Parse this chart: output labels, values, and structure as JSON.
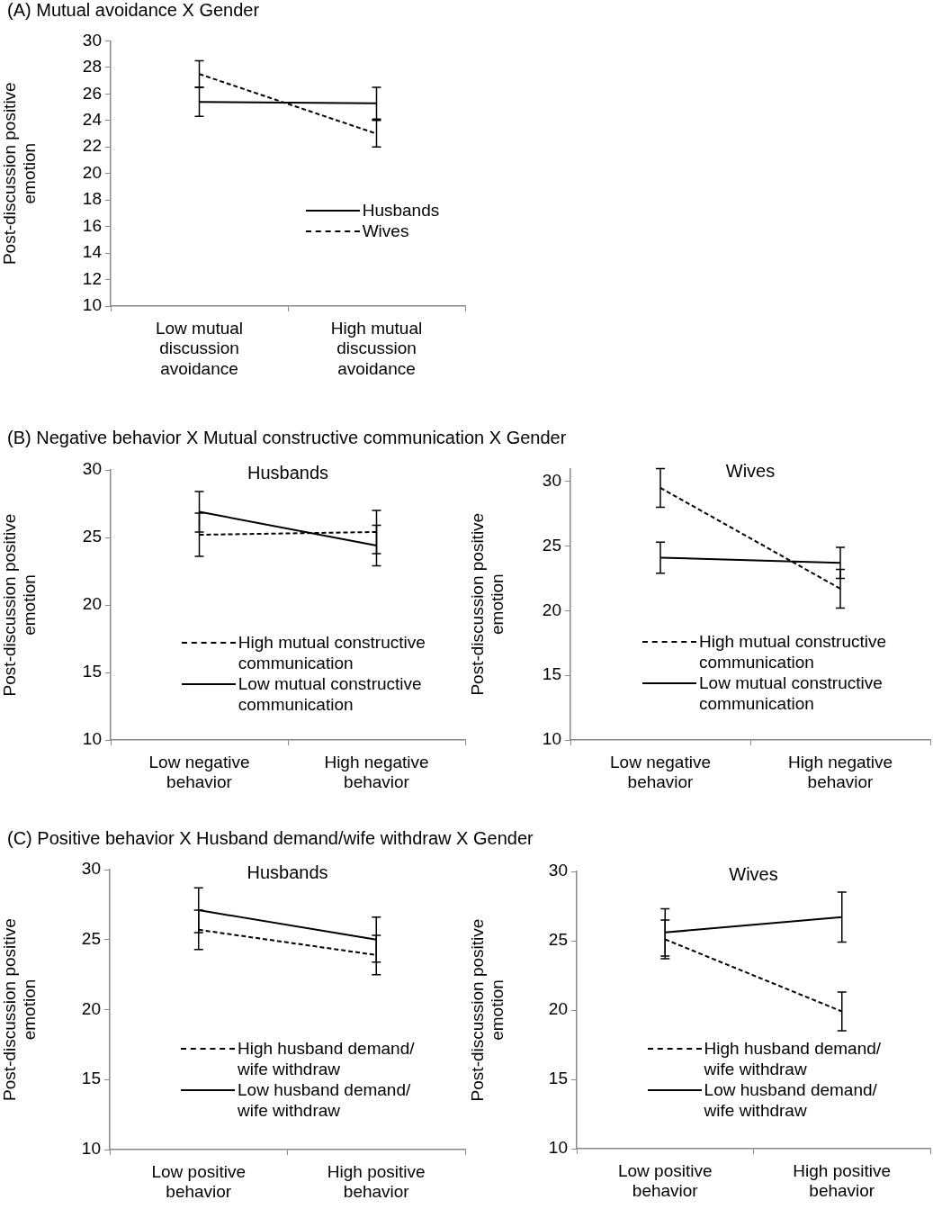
{
  "chart_data": [
    {
      "type": "line",
      "title": "(A) Mutual avoidance X Gender",
      "ylabel": "Post-discussion positive emotion",
      "categories": [
        "Low mutual discussion avoidance",
        "High mutual discussion avoidance"
      ],
      "ylim": [
        10,
        30
      ],
      "yticks": [
        10,
        12,
        14,
        16,
        18,
        20,
        22,
        24,
        26,
        28,
        30
      ],
      "legend": "right",
      "marker": "none",
      "series": [
        {
          "name": "Husbands",
          "color": "#000000",
          "line_style": "solid",
          "values": [
            25.4,
            25.3
          ],
          "errors": [
            1.1,
            1.2
          ]
        },
        {
          "name": "Wives",
          "color": "#000000",
          "line_style": "dashed",
          "values": [
            27.5,
            23.0
          ],
          "errors": [
            1.0,
            1.0
          ]
        }
      ]
    },
    {
      "type": "line",
      "title": "(B) Negative behavior X Mutual constructive communication X Gender",
      "subtitle": "Husbands",
      "ylabel": "Post-discussion positive emotion",
      "categories": [
        "Low negative behavior",
        "High negative behavior"
      ],
      "ylim": [
        10,
        30
      ],
      "yticks": [
        10,
        15,
        20,
        25,
        30
      ],
      "legend": "bottom right",
      "marker": "none",
      "series": [
        {
          "name": "High mutual constructive communication",
          "color": "#000000",
          "line_style": "dashed",
          "values": [
            25.2,
            25.4
          ],
          "errors": [
            1.6,
            1.6
          ]
        },
        {
          "name": "Low mutual constructive communication",
          "color": "#000000",
          "line_style": "solid",
          "values": [
            26.9,
            24.4
          ],
          "errors": [
            1.5,
            1.5
          ]
        }
      ]
    },
    {
      "type": "line",
      "subtitle": "Wives",
      "ylabel": "Post-discussion positive emotion",
      "categories": [
        "Low negative behavior",
        "High negative behavior"
      ],
      "ylim": [
        10,
        31
      ],
      "yticks": [
        10,
        15,
        20,
        25,
        30
      ],
      "legend": "bottom right",
      "marker": "none",
      "series": [
        {
          "name": "High mutual constructive communication",
          "color": "#000000",
          "line_style": "dashed",
          "values": [
            29.5,
            21.7
          ],
          "errors": [
            1.5,
            1.5
          ]
        },
        {
          "name": "Low mutual constructive communication",
          "color": "#000000",
          "line_style": "solid",
          "values": [
            24.1,
            23.7
          ],
          "errors": [
            1.2,
            1.2
          ]
        }
      ]
    },
    {
      "type": "line",
      "title": "(C) Positive behavior X Husband demand/wife withdraw X Gender",
      "subtitle": "Husbands",
      "ylabel": "Post-discussion positive emotion",
      "categories": [
        "Low positive behavior",
        "High positive behavior"
      ],
      "ylim": [
        10,
        30
      ],
      "yticks": [
        10,
        15,
        20,
        25,
        30
      ],
      "legend": "bottom right",
      "marker": "none",
      "series": [
        {
          "name": "High husband demand/ wife withdraw",
          "color": "#000000",
          "line_style": "dashed",
          "values": [
            25.7,
            23.9
          ],
          "errors": [
            1.4,
            1.4
          ]
        },
        {
          "name": "Low husband demand/ wife withdraw",
          "color": "#000000",
          "line_style": "solid",
          "values": [
            27.1,
            25.0
          ],
          "errors": [
            1.6,
            1.6
          ]
        }
      ]
    },
    {
      "type": "line",
      "subtitle": "Wives",
      "ylabel": "Post-discussion positive emotion",
      "categories": [
        "Low positive behavior",
        "High positive behavior"
      ],
      "ylim": [
        10,
        30
      ],
      "yticks": [
        10,
        15,
        20,
        25,
        30
      ],
      "legend": "bottom right",
      "marker": "none",
      "series": [
        {
          "name": "High husband demand/ wife withdraw",
          "color": "#000000",
          "line_style": "dashed",
          "values": [
            25.1,
            19.9
          ],
          "errors": [
            1.4,
            1.4
          ]
        },
        {
          "name": "Low husband demand/ wife withdraw",
          "color": "#000000",
          "line_style": "solid",
          "values": [
            25.6,
            26.7
          ],
          "errors": [
            1.7,
            1.8
          ]
        }
      ]
    }
  ]
}
